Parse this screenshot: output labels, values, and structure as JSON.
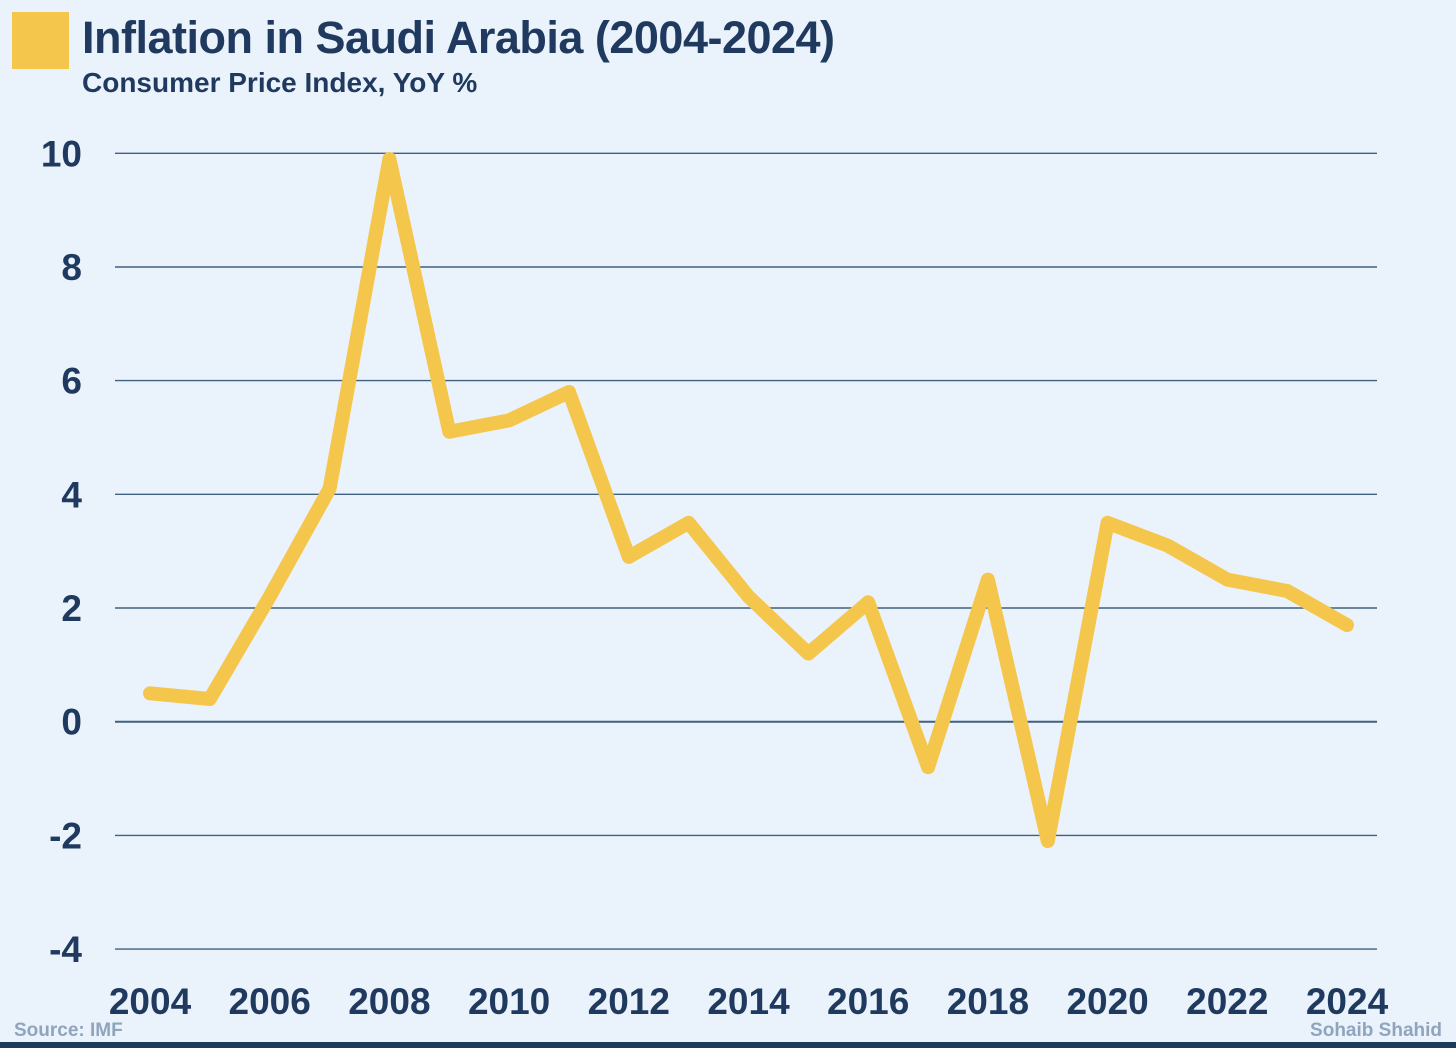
{
  "header": {
    "title": "Inflation in Saudi Arabia (2004-2024)",
    "subtitle": "Consumer Price Index, YoY %"
  },
  "footer": {
    "source": "Source: IMF",
    "author": "Sohaib Shahid"
  },
  "colors": {
    "background": "#EAF2FB",
    "accent_yellow": "#F4C74C",
    "navy_text": "#1F3A5E",
    "gridline": "#3F6080",
    "muted_text": "#90A5BD",
    "bottom_bar": "#1E3A5C"
  },
  "chart_data": {
    "type": "line",
    "title": "Inflation in Saudi Arabia (2004-2024)",
    "subtitle": "Consumer Price Index, YoY %",
    "xlabel": "",
    "ylabel": "",
    "x": [
      2004,
      2005,
      2006,
      2007,
      2008,
      2009,
      2010,
      2011,
      2012,
      2013,
      2014,
      2015,
      2016,
      2017,
      2018,
      2019,
      2020,
      2021,
      2022,
      2023,
      2024
    ],
    "values": [
      0.5,
      0.4,
      2.2,
      4.1,
      9.9,
      5.1,
      5.3,
      5.8,
      2.9,
      3.5,
      2.2,
      1.2,
      2.1,
      -0.8,
      2.5,
      -2.1,
      3.5,
      3.1,
      2.5,
      2.3,
      1.7
    ],
    "series_name": "CPI YoY %",
    "xticks": [
      2004,
      2006,
      2008,
      2010,
      2012,
      2014,
      2016,
      2018,
      2020,
      2022,
      2024
    ],
    "yticks": [
      -4,
      -2,
      0,
      2,
      4,
      6,
      8,
      10
    ],
    "ylim": [
      -4,
      10
    ],
    "xlim": [
      2004,
      2024
    ],
    "grid": "horizontal-only",
    "legend": "none",
    "line_color": "#F4C74C",
    "line_width": 14
  }
}
